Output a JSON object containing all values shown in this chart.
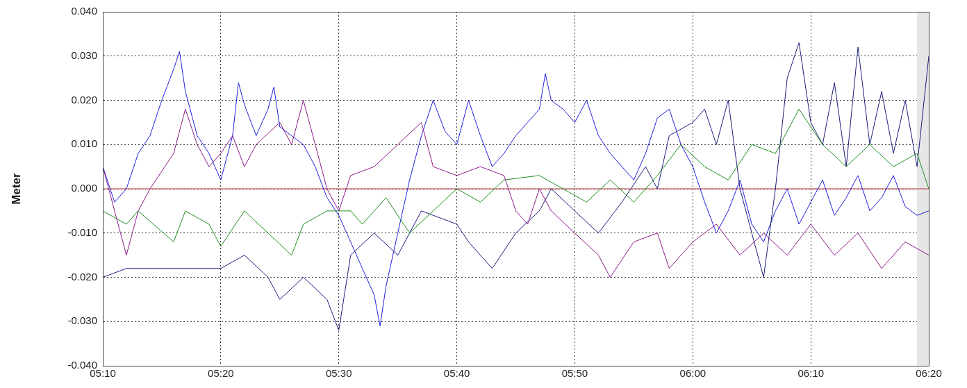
{
  "chart_data": {
    "type": "line",
    "ylabel": "Meter",
    "xlim": [
      5.1667,
      6.3333
    ],
    "xticks": [
      {
        "value": 5.1667,
        "label": "05:10"
      },
      {
        "value": 5.3333,
        "label": "05:20"
      },
      {
        "value": 5.5,
        "label": "05:30"
      },
      {
        "value": 5.6667,
        "label": "05:40"
      },
      {
        "value": 5.8333,
        "label": "05:50"
      },
      {
        "value": 6.0,
        "label": "06:00"
      },
      {
        "value": 6.1667,
        "label": "06:10"
      },
      {
        "value": 6.3333,
        "label": "06:20"
      }
    ],
    "ylim": [
      -0.04,
      0.04
    ],
    "yticks": [
      {
        "value": -0.04,
        "label": "-0.040"
      },
      {
        "value": -0.03,
        "label": "-0.030"
      },
      {
        "value": -0.02,
        "label": "-0.020"
      },
      {
        "value": -0.01,
        "label": "-0.010"
      },
      {
        "value": 0,
        "label": "0.000"
      },
      {
        "value": 0.01,
        "label": "0.010"
      },
      {
        "value": 0.02,
        "label": "0.020"
      },
      {
        "value": 0.03,
        "label": "0.030"
      },
      {
        "value": 0.04,
        "label": "0.040"
      }
    ],
    "grid": true,
    "legend": false,
    "marker": "none",
    "line_style": "solid",
    "ref_lines": [
      {
        "axis": "y",
        "value": 0,
        "color": "#b03030"
      }
    ],
    "bands": [
      {
        "axis": "x",
        "from": 6.3167,
        "to": 6.3333,
        "color": "#e6e6e6"
      }
    ],
    "series": [
      {
        "color": "#8a1a8a",
        "x": [
          5.1667,
          5.1833,
          5.2,
          5.2167,
          5.2333,
          5.2667,
          5.2833,
          5.3,
          5.3167,
          5.3333,
          5.35,
          5.3667,
          5.3833,
          5.4167,
          5.4333,
          5.45,
          5.4667,
          5.4833,
          5.5,
          5.5167,
          5.55,
          5.5833,
          5.6167,
          5.6333,
          5.6667,
          5.7,
          5.7333,
          5.75,
          5.7667,
          5.7833,
          5.8,
          5.8333,
          5.8667,
          5.8833,
          5.9167,
          5.95,
          5.9667,
          6.0,
          6.0333,
          6.0667,
          6.1,
          6.1333,
          6.1667,
          6.2,
          6.2333,
          6.2667,
          6.3,
          6.3333
        ],
        "values": [
          0.005,
          -0.005,
          -0.015,
          -0.005,
          0.0,
          0.008,
          0.018,
          0.01,
          0.005,
          0.008,
          0.012,
          0.005,
          0.01,
          0.015,
          0.01,
          0.02,
          0.01,
          0.0,
          -0.005,
          0.003,
          0.005,
          0.01,
          0.015,
          0.005,
          0.003,
          0.005,
          0.003,
          -0.005,
          -0.008,
          0.0,
          -0.005,
          -0.01,
          -0.015,
          -0.02,
          -0.012,
          -0.01,
          -0.018,
          -0.012,
          -0.008,
          -0.015,
          -0.01,
          -0.015,
          -0.008,
          -0.015,
          -0.01,
          -0.018,
          -0.012,
          -0.015
        ]
      },
      {
        "color": "#1e8c1e",
        "x": [
          5.1667,
          5.2,
          5.2167,
          5.2667,
          5.2833,
          5.3167,
          5.3333,
          5.3667,
          5.4,
          5.4333,
          5.45,
          5.4833,
          5.5167,
          5.5333,
          5.5667,
          5.6,
          5.6333,
          5.6667,
          5.7,
          5.7333,
          5.7833,
          5.8167,
          5.85,
          5.8833,
          5.9167,
          5.95,
          5.9833,
          6.0167,
          6.05,
          6.0833,
          6.1167,
          6.15,
          6.1833,
          6.2167,
          6.25,
          6.2833,
          6.3167,
          6.3333
        ],
        "values": [
          -0.005,
          -0.008,
          -0.005,
          -0.012,
          -0.005,
          -0.008,
          -0.013,
          -0.005,
          -0.01,
          -0.015,
          -0.008,
          -0.005,
          -0.005,
          -0.008,
          -0.002,
          -0.01,
          -0.005,
          0.0,
          -0.003,
          0.002,
          0.003,
          0.0,
          -0.003,
          0.002,
          -0.003,
          0.003,
          0.01,
          0.005,
          0.002,
          0.01,
          0.008,
          0.018,
          0.01,
          0.005,
          0.01,
          0.005,
          0.008,
          0.0
        ]
      },
      {
        "color": "#1c1c7a",
        "x": [
          5.1667,
          5.2,
          5.25,
          5.3333,
          5.3667,
          5.4,
          5.4167,
          5.45,
          5.4833,
          5.5,
          5.5167,
          5.55,
          5.5833,
          5.6167,
          5.6667,
          5.6833,
          5.7167,
          5.75,
          5.7833,
          5.8,
          5.8333,
          5.8667,
          5.9,
          5.9333,
          5.95,
          5.9667,
          6.0,
          6.0167,
          6.0333,
          6.05,
          6.0667,
          6.0833,
          6.1,
          6.1167,
          6.1333,
          6.15,
          6.1667,
          6.1833,
          6.2,
          6.2167,
          6.2333,
          6.25,
          6.2667,
          6.2833,
          6.3,
          6.3167,
          6.3333
        ],
        "values": [
          -0.02,
          -0.018,
          -0.018,
          -0.018,
          -0.015,
          -0.02,
          -0.025,
          -0.02,
          -0.025,
          -0.032,
          -0.015,
          -0.01,
          -0.015,
          -0.005,
          -0.008,
          -0.012,
          -0.018,
          -0.01,
          -0.005,
          0.0,
          -0.005,
          -0.01,
          -0.003,
          0.005,
          0.0,
          0.012,
          0.015,
          0.018,
          0.01,
          0.02,
          0.0,
          -0.01,
          -0.02,
          0.0,
          0.025,
          0.033,
          0.015,
          0.01,
          0.024,
          0.005,
          0.032,
          0.01,
          0.022,
          0.008,
          0.02,
          0.005,
          0.03
        ]
      },
      {
        "color": "#1e1edc",
        "x": [
          5.1667,
          5.1833,
          5.2,
          5.2167,
          5.2333,
          5.25,
          5.2667,
          5.275,
          5.2833,
          5.3,
          5.3167,
          5.3333,
          5.35,
          5.3583,
          5.3667,
          5.3833,
          5.4,
          5.4083,
          5.4167,
          5.4333,
          5.45,
          5.4667,
          5.4833,
          5.5,
          5.5167,
          5.5333,
          5.55,
          5.5583,
          5.5667,
          5.5833,
          5.6,
          5.6167,
          5.6333,
          5.65,
          5.6667,
          5.6833,
          5.7,
          5.7167,
          5.7333,
          5.75,
          5.7667,
          5.7833,
          5.7917,
          5.8,
          5.8167,
          5.8333,
          5.85,
          5.8667,
          5.8833,
          5.9,
          5.9167,
          5.9333,
          5.95,
          5.9667,
          5.9833,
          6.0,
          6.0167,
          6.0333,
          6.05,
          6.0667,
          6.0833,
          6.1,
          6.1167,
          6.1333,
          6.15,
          6.1667,
          6.1833,
          6.2,
          6.2167,
          6.2333,
          6.25,
          6.2667,
          6.2833,
          6.3,
          6.3167,
          6.3333
        ],
        "values": [
          0.005,
          -0.003,
          0.0,
          0.008,
          0.012,
          0.02,
          0.027,
          0.031,
          0.022,
          0.012,
          0.008,
          0.002,
          0.012,
          0.024,
          0.019,
          0.012,
          0.018,
          0.023,
          0.014,
          0.012,
          0.01,
          0.005,
          -0.002,
          -0.006,
          -0.012,
          -0.018,
          -0.024,
          -0.031,
          -0.022,
          -0.01,
          0.002,
          0.012,
          0.02,
          0.013,
          0.01,
          0.02,
          0.012,
          0.005,
          0.008,
          0.012,
          0.015,
          0.018,
          0.026,
          0.02,
          0.018,
          0.015,
          0.02,
          0.012,
          0.008,
          0.005,
          0.002,
          0.008,
          0.016,
          0.018,
          0.01,
          0.005,
          -0.003,
          -0.01,
          -0.005,
          0.002,
          -0.008,
          -0.012,
          -0.005,
          0.0,
          -0.008,
          -0.003,
          0.002,
          -0.006,
          -0.002,
          0.003,
          -0.005,
          -0.002,
          0.003,
          -0.004,
          -0.006,
          -0.005
        ]
      }
    ]
  }
}
